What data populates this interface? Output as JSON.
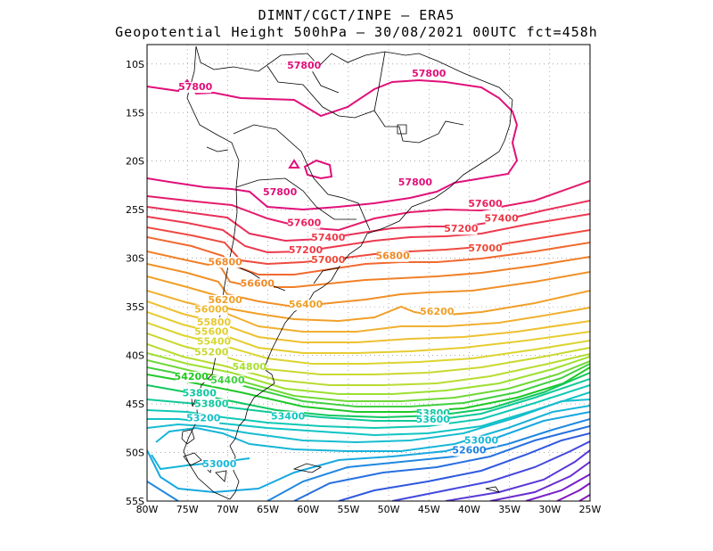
{
  "title": {
    "line1": "DIMNT/CGCT/INPE –  ERA5",
    "line2": "Geopotential Height 500hPa –  30/08/2021 00UTC fct=458h"
  },
  "map": {
    "lon_range": [
      -80,
      -25
    ],
    "lat_range": [
      -55,
      -8
    ],
    "grid": "dotted",
    "lon_ticks": [
      "80W",
      "75W",
      "70W",
      "65W",
      "60W",
      "55W",
      "50W",
      "45W",
      "40W",
      "35W",
      "30W",
      "25W"
    ],
    "lat_ticks": [
      "10S",
      "15S",
      "20S",
      "25S",
      "30S",
      "35S",
      "40S",
      "45S",
      "50S",
      "55S"
    ]
  },
  "contour_labels": [
    {
      "text": "57800",
      "color": "#e0107a",
      "lon": -60.5,
      "lat": -10.5
    },
    {
      "text": "57800",
      "color": "#e0107a",
      "lon": -74,
      "lat": -12.7
    },
    {
      "text": "57800",
      "color": "#e0107a",
      "lon": -45,
      "lat": -11.3
    },
    {
      "text": "57800",
      "color": "#e0107a",
      "lon": -46.7,
      "lat": -22.5
    },
    {
      "text": "57800",
      "color": "#e0107a",
      "lon": -63.5,
      "lat": -23.5
    },
    {
      "text": "57600",
      "color": "#ea2060",
      "lon": -38,
      "lat": -24.7
    },
    {
      "text": "57600",
      "color": "#ea2060",
      "lon": -60.5,
      "lat": -26.7
    },
    {
      "text": "57400",
      "color": "#ee3a48",
      "lon": -36,
      "lat": -26.2
    },
    {
      "text": "57400",
      "color": "#ee3a48",
      "lon": -57.5,
      "lat": -28.2
    },
    {
      "text": "57200",
      "color": "#ee3a48",
      "lon": -41,
      "lat": -27.3
    },
    {
      "text": "57200",
      "color": "#ee3a48",
      "lon": -60.3,
      "lat": -29.5
    },
    {
      "text": "57000",
      "color": "#ee4a38",
      "lon": -57.5,
      "lat": -30.5
    },
    {
      "text": "57000",
      "color": "#ee4a38",
      "lon": -38,
      "lat": -29.3
    },
    {
      "text": "56800",
      "color": "#f08a28",
      "lon": -70.3,
      "lat": -30.7
    },
    {
      "text": "56800",
      "color": "#f08a28",
      "lon": -49.5,
      "lat": -30.1
    },
    {
      "text": "56600",
      "color": "#f08a28",
      "lon": -66.3,
      "lat": -32.9
    },
    {
      "text": "56400",
      "color": "#f0a028",
      "lon": -60.3,
      "lat": -35.1
    },
    {
      "text": "56200",
      "color": "#f0a028",
      "lon": -70.3,
      "lat": -34.6
    },
    {
      "text": "56200",
      "color": "#f0a028",
      "lon": -44,
      "lat": -35.8
    },
    {
      "text": "56000",
      "color": "#f0b830",
      "lon": -72,
      "lat": -35.6
    },
    {
      "text": "55800",
      "color": "#e8c830",
      "lon": -71.7,
      "lat": -36.9
    },
    {
      "text": "55600",
      "color": "#e0d030",
      "lon": -72,
      "lat": -37.9
    },
    {
      "text": "55400",
      "color": "#d8d830",
      "lon": -71.7,
      "lat": -38.9
    },
    {
      "text": "55200",
      "color": "#c8d830",
      "lon": -72,
      "lat": -40.0
    },
    {
      "text": "54800",
      "color": "#a8e030",
      "lon": -67.3,
      "lat": -41.5
    },
    {
      "text": "54400",
      "color": "#40d040",
      "lon": -70,
      "lat": -42.9
    },
    {
      "text": "54200",
      "color": "#20c820",
      "lon": -74.5,
      "lat": -42.5
    },
    {
      "text": "53800",
      "color": "#10c8a0",
      "lon": -73.5,
      "lat": -44.2
    },
    {
      "text": "53800",
      "color": "#10c8a0",
      "lon": -72,
      "lat": -45.3
    },
    {
      "text": "53800",
      "color": "#10c8a0",
      "lon": -44.5,
      "lat": -46.3
    },
    {
      "text": "53600",
      "color": "#10c8b8",
      "lon": -44.5,
      "lat": -46.9
    },
    {
      "text": "53400",
      "color": "#10c8c0",
      "lon": -62.5,
      "lat": -46.6
    },
    {
      "text": "53200",
      "color": "#18c0c8",
      "lon": -73,
      "lat": -46.8
    },
    {
      "text": "53000",
      "color": "#18b8d8",
      "lon": -38.5,
      "lat": -49.1
    },
    {
      "text": "53000",
      "color": "#18b8d8",
      "lon": -71,
      "lat": -51.5
    },
    {
      "text": "52600",
      "color": "#2080e0",
      "lon": -40,
      "lat": -50.1
    }
  ]
}
